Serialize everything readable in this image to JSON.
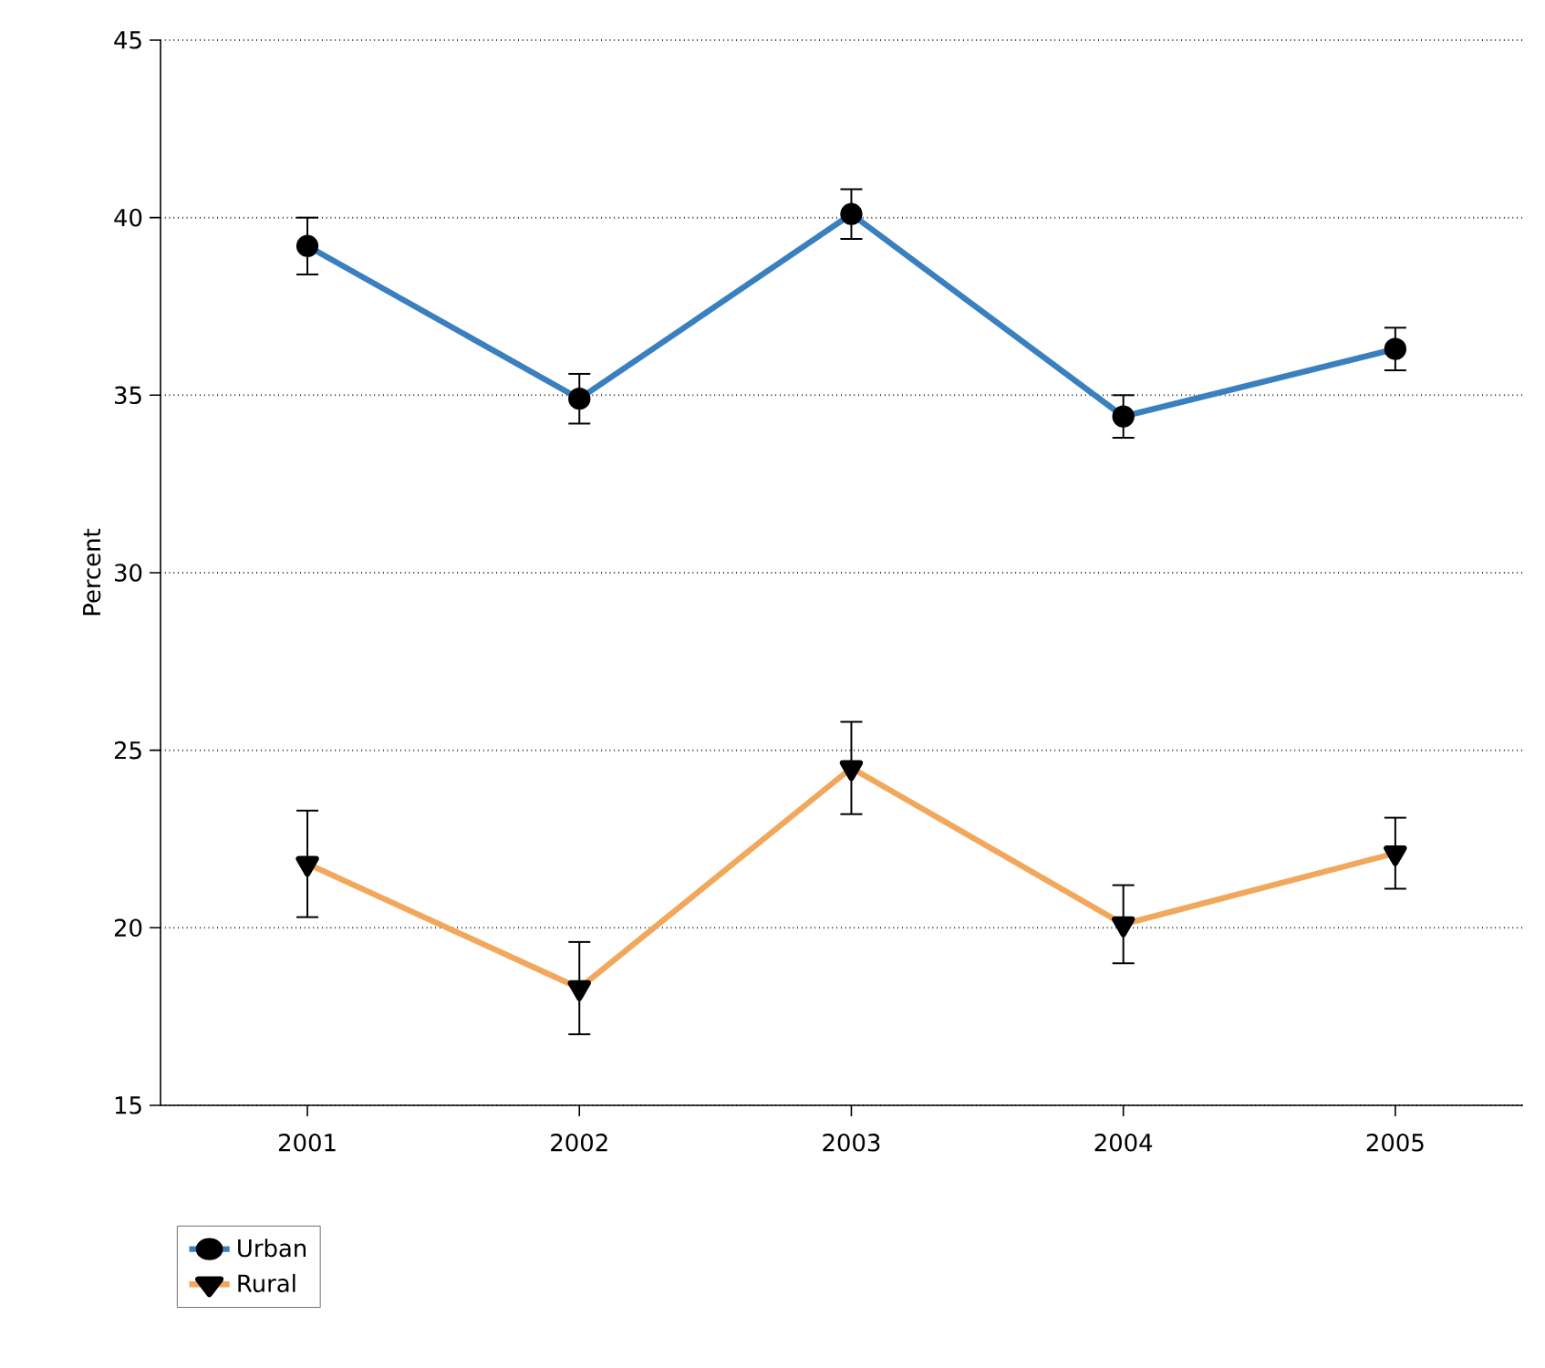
{
  "chart_data": {
    "type": "line",
    "ylabel": "Percent",
    "categories": [
      "2001",
      "2002",
      "2003",
      "2004",
      "2005"
    ],
    "ylim": [
      15,
      45
    ],
    "yticks": [
      15,
      20,
      25,
      30,
      35,
      40,
      45
    ],
    "grid": "y",
    "legend": "bottom left",
    "line_style": "solid",
    "series": [
      {
        "name": "Urban",
        "color": "#3a80bf",
        "marker": "circle",
        "values": [
          39.2,
          34.9,
          40.1,
          34.4,
          36.3
        ],
        "errors": [
          0.8,
          0.7,
          0.7,
          0.6,
          0.6
        ]
      },
      {
        "name": "Rural",
        "color": "#f2a85c",
        "marker": "triangle",
        "values": [
          21.8,
          18.3,
          24.5,
          20.1,
          22.1
        ],
        "errors": [
          1.5,
          1.3,
          1.3,
          1.1,
          1.0
        ]
      }
    ]
  }
}
